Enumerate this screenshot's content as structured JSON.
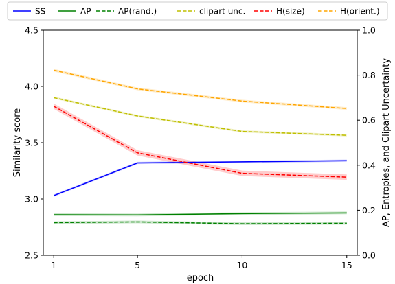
{
  "chart_data": {
    "type": "line",
    "xlabel": "epoch",
    "ylabel_left": "Similarity score",
    "ylabel_right": "AP, Entropies, and Clipart Uncertainty",
    "x_ticks": [
      1,
      5,
      10,
      15
    ],
    "xlim": [
      0.5,
      15.5
    ],
    "ylim_left": [
      2.5,
      4.5
    ],
    "y_ticks_left": [
      2.5,
      3.0,
      3.5,
      4.0,
      4.5
    ],
    "y_tick_labels_left": [
      "2.5",
      "3.0",
      "3.5",
      "4.0",
      "4.5"
    ],
    "ylim_right": [
      0.0,
      1.0
    ],
    "y_ticks_right": [
      0.0,
      0.2,
      0.4,
      0.6,
      0.8,
      1.0
    ],
    "y_tick_labels_right": [
      "0.0",
      "0.2",
      "0.4",
      "0.6",
      "0.8",
      "1.0"
    ],
    "grid": false,
    "legend_position": "top, above plot",
    "x": [
      1,
      5,
      10,
      15
    ],
    "series": [
      {
        "name": "SS",
        "axis": "left",
        "color": "#0000ff",
        "dash": "solid",
        "values": [
          3.03,
          3.32,
          3.33,
          3.34
        ],
        "band": 0.01
      },
      {
        "name": "AP",
        "axis": "right",
        "color": "#008000",
        "dash": "solid",
        "values": [
          0.18,
          0.179,
          0.185,
          0.188
        ],
        "band": 0.006
      },
      {
        "name": "AP(rand.)",
        "axis": "right",
        "color": "#008000",
        "dash": "dashed",
        "values": [
          0.145,
          0.148,
          0.14,
          0.142
        ],
        "band": 0.006
      },
      {
        "name": "clipart unc.",
        "axis": "right",
        "color": "#bfbf00",
        "dash": "dashed",
        "values": [
          0.7,
          0.619,
          0.55,
          0.533
        ],
        "band": 0.005
      },
      {
        "name": "H(size)",
        "axis": "right",
        "color": "#ff0000",
        "dash": "dashed",
        "values": [
          0.662,
          0.455,
          0.364,
          0.347
        ],
        "band": 0.012
      },
      {
        "name": "H(orient.)",
        "axis": "right",
        "color": "#ffa500",
        "dash": "dashed",
        "values": [
          0.822,
          0.739,
          0.685,
          0.652
        ],
        "band": 0.006
      }
    ]
  }
}
